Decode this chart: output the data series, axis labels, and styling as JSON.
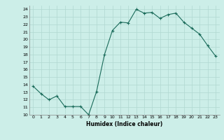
{
  "x": [
    0,
    1,
    2,
    3,
    4,
    5,
    6,
    7,
    8,
    9,
    10,
    11,
    12,
    13,
    14,
    15,
    16,
    17,
    18,
    19,
    20,
    21,
    22,
    23
  ],
  "y": [
    13.8,
    12.8,
    12.0,
    12.5,
    11.1,
    11.1,
    11.1,
    10.0,
    13.1,
    18.0,
    21.2,
    22.3,
    22.2,
    24.0,
    23.5,
    23.6,
    22.8,
    23.3,
    23.5,
    22.3,
    21.5,
    20.7,
    19.2,
    17.8
  ],
  "line_color": "#1a6b5a",
  "marker": "+",
  "xlabel": "Humidex (Indice chaleur)",
  "ylim": [
    10,
    24.5
  ],
  "xlim": [
    -0.5,
    23.5
  ],
  "yticks": [
    10,
    11,
    12,
    13,
    14,
    15,
    16,
    17,
    18,
    19,
    20,
    21,
    22,
    23,
    24
  ],
  "xticks": [
    0,
    1,
    2,
    3,
    4,
    5,
    6,
    7,
    8,
    9,
    10,
    11,
    12,
    13,
    14,
    15,
    16,
    17,
    18,
    19,
    20,
    21,
    22,
    23
  ],
  "bg_color": "#cceee8",
  "grid_color": "#b0d8d0",
  "xlabel_color": "#000000"
}
